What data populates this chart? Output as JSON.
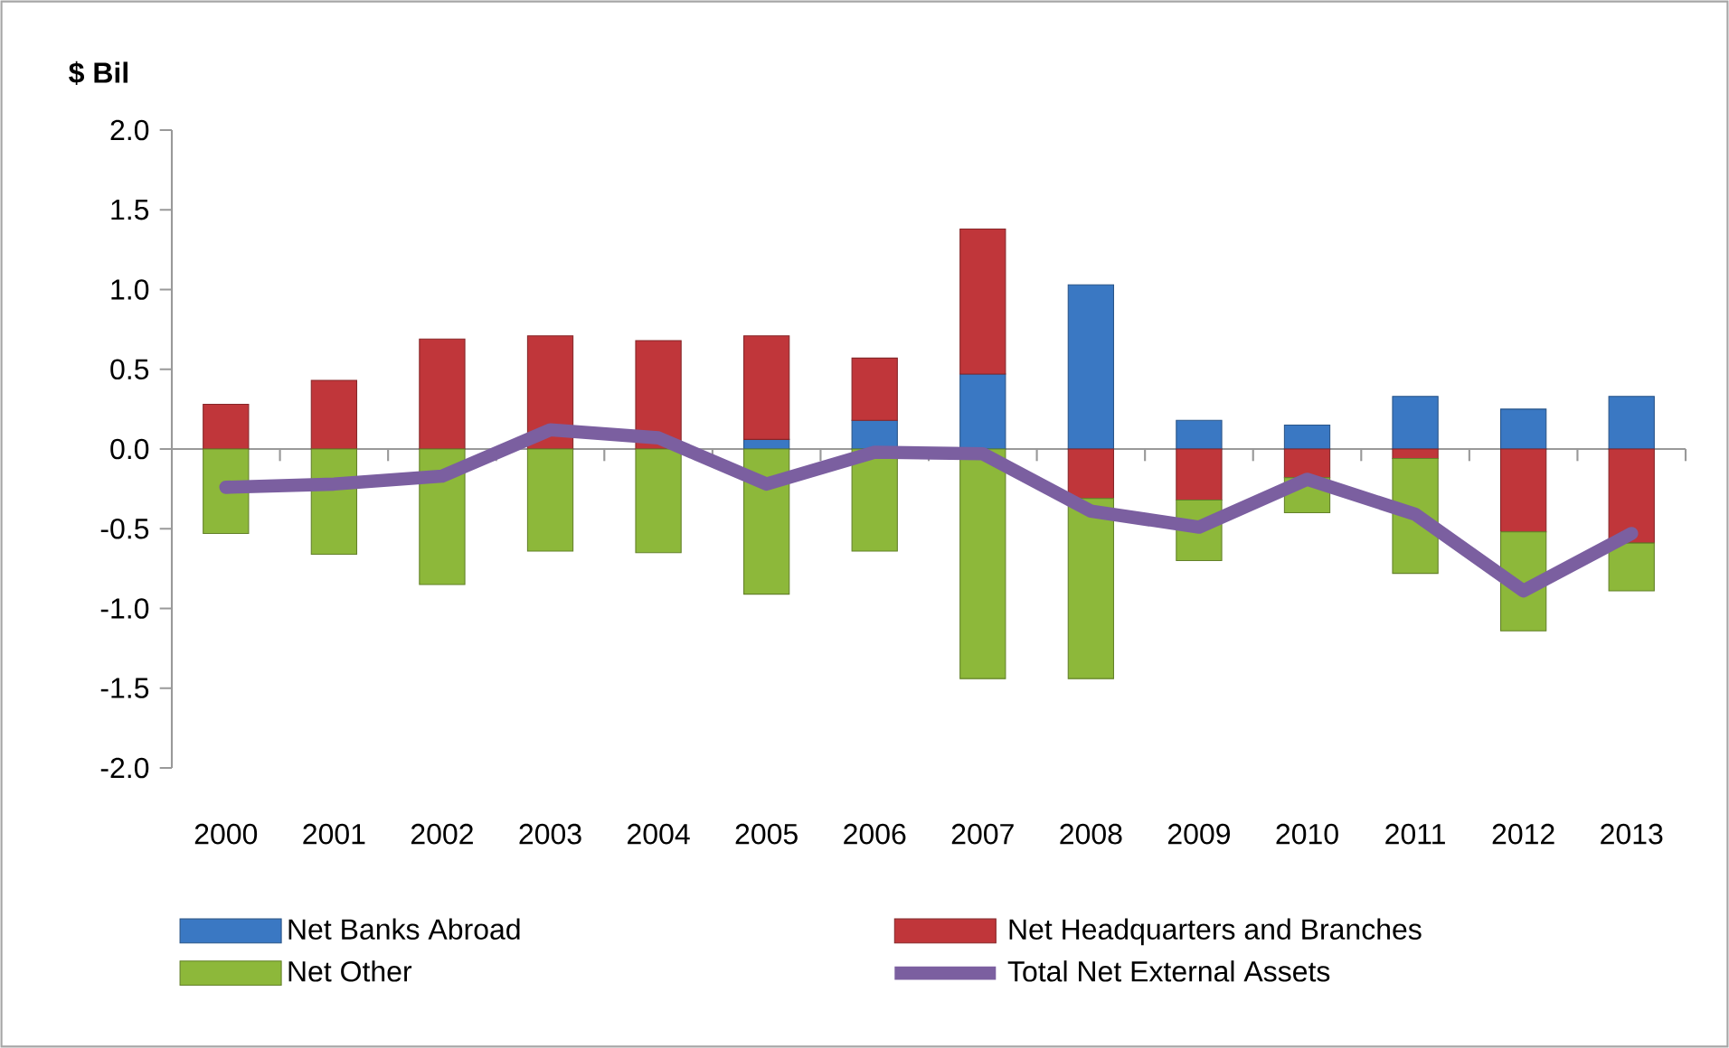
{
  "chart_data": {
    "type": "bar",
    "stacked": true,
    "ylabel": "$ Bil",
    "categories": [
      "2000",
      "2001",
      "2002",
      "2003",
      "2004",
      "2005",
      "2006",
      "2007",
      "2008",
      "2009",
      "2010",
      "2011",
      "2012",
      "2013"
    ],
    "series": [
      {
        "name": "Net Banks Abroad",
        "color": "#3a78c3",
        "values": [
          0,
          0,
          0,
          0,
          0,
          0.06,
          0.18,
          0.47,
          1.03,
          0.18,
          0.15,
          0.33,
          0.25,
          0.33
        ]
      },
      {
        "name": "Net Headquarters and Branches",
        "color": "#c0363a",
        "values": [
          0.28,
          0.43,
          0.69,
          0.71,
          0.68,
          0.65,
          0.39,
          0.91,
          -0.31,
          -0.32,
          -0.18,
          -0.06,
          -0.52,
          -0.59
        ]
      },
      {
        "name": "Net Other",
        "color": "#8db83a",
        "values": [
          -0.53,
          -0.66,
          -0.85,
          -0.64,
          -0.65,
          -0.91,
          -0.64,
          -1.44,
          -1.13,
          -0.38,
          -0.22,
          -0.72,
          -0.62,
          -0.3
        ]
      },
      {
        "name": "Total Net External Assets",
        "type": "line",
        "color": "#7b5fa0",
        "values": [
          -0.24,
          -0.22,
          -0.17,
          0.12,
          0.07,
          -0.22,
          -0.02,
          -0.03,
          -0.39,
          -0.49,
          -0.19,
          -0.41,
          -0.89,
          -0.53
        ]
      }
    ],
    "ylim": [
      -2.0,
      2.0
    ],
    "yticks": [
      {
        "value": -2,
        "label": "-2.0"
      },
      {
        "value": -1.5,
        "label": "-1.5"
      },
      {
        "value": -1,
        "label": "-1.0"
      },
      {
        "value": -0.5,
        "label": "-0.5"
      },
      {
        "value": 0,
        "label": "0.0"
      },
      {
        "value": 0.5,
        "label": "0.5"
      },
      {
        "value": 1,
        "label": "1.0"
      },
      {
        "value": 1.5,
        "label": "1.5"
      },
      {
        "value": 2,
        "label": "2.0"
      }
    ],
    "legend": "bottom"
  }
}
